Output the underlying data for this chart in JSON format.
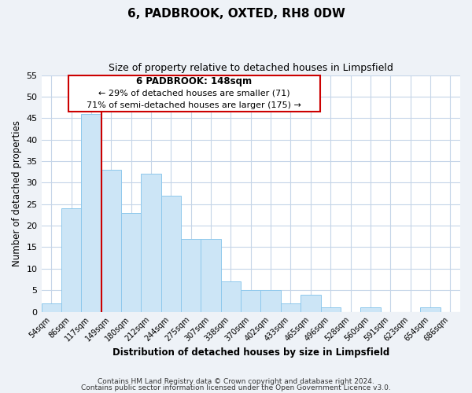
{
  "title": "6, PADBROOK, OXTED, RH8 0DW",
  "subtitle": "Size of property relative to detached houses in Limpsfield",
  "xlabel": "Distribution of detached houses by size in Limpsfield",
  "ylabel": "Number of detached properties",
  "bin_labels": [
    "54sqm",
    "86sqm",
    "117sqm",
    "149sqm",
    "180sqm",
    "212sqm",
    "244sqm",
    "275sqm",
    "307sqm",
    "338sqm",
    "370sqm",
    "402sqm",
    "433sqm",
    "465sqm",
    "496sqm",
    "528sqm",
    "560sqm",
    "591sqm",
    "623sqm",
    "654sqm",
    "686sqm"
  ],
  "bar_values": [
    2,
    24,
    46,
    33,
    23,
    32,
    27,
    17,
    17,
    7,
    5,
    5,
    2,
    4,
    1,
    0,
    1,
    0,
    0,
    1,
    0
  ],
  "bar_color": "#cce5f6",
  "bar_edge_color": "#8ec8ec",
  "vline_x": 2.5,
  "vline_color": "#cc0000",
  "ylim": [
    0,
    55
  ],
  "yticks": [
    0,
    5,
    10,
    15,
    20,
    25,
    30,
    35,
    40,
    45,
    50,
    55
  ],
  "annotation_title": "6 PADBROOK: 148sqm",
  "annotation_line1": "← 29% of detached houses are smaller (71)",
  "annotation_line2": "71% of semi-detached houses are larger (175) →",
  "annotation_box_facecolor": "#ffffff",
  "annotation_box_edgecolor": "#cc0000",
  "footer1": "Contains HM Land Registry data © Crown copyright and database right 2024.",
  "footer2": "Contains public sector information licensed under the Open Government Licence v3.0.",
  "fig_facecolor": "#eef2f7",
  "plot_facecolor": "#ffffff",
  "grid_color": "#c5d5e8"
}
